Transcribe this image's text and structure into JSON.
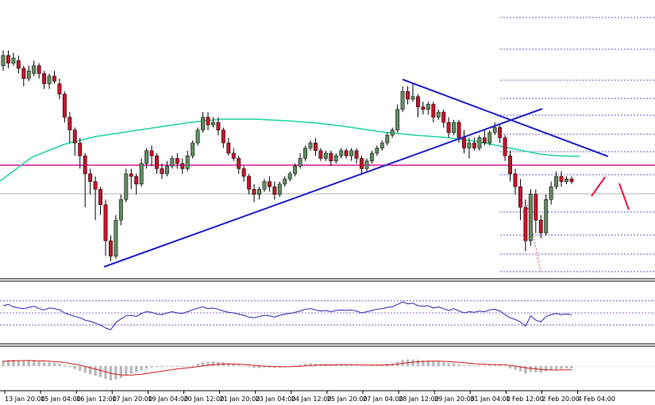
{
  "colors": {
    "bull_body": "#5f8a5f",
    "bear_body": "#c0152a",
    "wick": "#000000",
    "trendline": "#1f1fcc",
    "ma": "#1fd3a3",
    "resistance": "#e0169a",
    "price_line": "#b0b0b0",
    "fib": "#3030c8",
    "rsi_line": "#2727b5",
    "rsi_levels": "#7a3fc4",
    "macd_hist": "#b7b7b7",
    "macd_signal": "#d41d1d",
    "projection": "#e8143c"
  },
  "chart_data": [
    {
      "type": "candlestick",
      "panel": "price",
      "x_ticks": [
        "13 Jan 20:00",
        "15 Jan 04:00",
        "16 Jan 12:00",
        "17 Jan 20:00",
        "19 Jan 04:00",
        "20 Jan 12:00",
        "21 Jan 20:00",
        "23 Jan 04:00",
        "24 Jan 12:00",
        "25 Jan 20:00",
        "27 Jan 04:00",
        "28 Jan 12:00",
        "29 Jan 20:00",
        "31 Jan 04:00",
        "1 Feb 12:00",
        "2 Feb 20:00",
        "4 Feb 04:00"
      ],
      "y_range": [
        0,
        100
      ],
      "grid": false,
      "candles": [
        [
          80,
          84,
          86,
          78
        ],
        [
          84,
          81,
          86,
          79
        ],
        [
          81,
          83,
          85,
          80
        ],
        [
          82,
          79,
          84,
          77
        ],
        [
          79,
          75,
          80,
          72
        ],
        [
          75,
          78,
          80,
          74
        ],
        [
          77,
          80,
          82,
          76
        ],
        [
          80,
          77,
          81,
          75
        ],
        [
          77,
          73,
          78,
          71
        ],
        [
          73,
          76,
          77,
          71
        ],
        [
          76,
          74,
          78,
          73
        ],
        [
          73,
          69,
          75,
          67
        ],
        [
          69,
          60,
          70,
          58
        ],
        [
          60,
          55,
          62,
          50
        ],
        [
          55,
          50,
          56,
          45
        ],
        [
          50,
          45,
          52,
          40
        ],
        [
          45,
          38,
          46,
          25
        ],
        [
          38,
          35,
          40,
          30
        ],
        [
          35,
          32,
          37,
          20
        ],
        [
          32,
          26,
          33,
          22
        ],
        [
          26,
          12,
          28,
          6
        ],
        [
          12,
          6,
          14,
          4
        ],
        [
          6,
          20,
          22,
          5
        ],
        [
          20,
          28,
          30,
          18
        ],
        [
          28,
          38,
          40,
          27
        ],
        [
          38,
          37,
          40,
          32
        ],
        [
          37,
          34,
          38,
          30
        ],
        [
          34,
          42,
          44,
          33
        ],
        [
          42,
          47,
          48,
          40
        ],
        [
          47,
          45,
          49,
          41
        ],
        [
          45,
          40,
          46,
          38
        ],
        [
          40,
          38,
          42,
          36
        ],
        [
          38,
          41,
          43,
          37
        ],
        [
          41,
          44,
          45,
          40
        ],
        [
          44,
          42,
          46,
          40
        ],
        [
          42,
          40,
          44,
          38
        ],
        [
          40,
          45,
          47,
          39
        ],
        [
          45,
          50,
          51,
          44
        ],
        [
          50,
          55,
          56,
          49
        ],
        [
          55,
          60,
          62,
          54
        ],
        [
          60,
          57,
          62,
          55
        ],
        [
          57,
          58,
          60,
          56
        ],
        [
          58,
          55,
          60,
          53
        ],
        [
          55,
          50,
          56,
          48
        ],
        [
          50,
          46,
          52,
          45
        ],
        [
          46,
          44,
          48,
          43
        ],
        [
          44,
          40,
          45,
          38
        ],
        [
          40,
          37,
          41,
          35
        ],
        [
          37,
          32,
          38,
          30
        ],
        [
          32,
          30,
          34,
          27
        ],
        [
          30,
          32,
          33,
          28
        ],
        [
          32,
          35,
          36,
          31
        ],
        [
          35,
          33,
          37,
          31
        ],
        [
          33,
          30,
          35,
          28
        ],
        [
          30,
          34,
          35,
          29
        ],
        [
          34,
          36,
          37,
          33
        ],
        [
          36,
          38,
          39,
          35
        ],
        [
          38,
          41,
          42,
          37
        ],
        [
          41,
          44,
          46,
          40
        ],
        [
          44,
          48,
          49,
          43
        ],
        [
          48,
          50,
          51,
          47
        ],
        [
          50,
          47,
          52,
          45
        ],
        [
          47,
          44,
          48,
          43
        ],
        [
          44,
          46,
          47,
          43
        ],
        [
          46,
          43,
          47,
          41
        ],
        [
          43,
          45,
          46,
          42
        ],
        [
          45,
          47,
          48,
          44
        ],
        [
          47,
          45,
          48,
          44
        ],
        [
          45,
          47,
          48,
          43
        ],
        [
          47,
          44,
          48,
          42
        ],
        [
          44,
          40,
          45,
          38
        ],
        [
          40,
          43,
          44,
          39
        ],
        [
          43,
          46,
          47,
          42
        ],
        [
          46,
          48,
          49,
          45
        ],
        [
          48,
          50,
          51,
          47
        ],
        [
          50,
          53,
          54,
          49
        ],
        [
          53,
          55,
          56,
          52
        ],
        [
          55,
          63,
          65,
          54
        ],
        [
          63,
          70,
          72,
          62
        ],
        [
          70,
          67,
          72,
          65
        ],
        [
          67,
          68,
          73,
          66
        ],
        [
          68,
          64,
          69,
          60
        ],
        [
          64,
          63,
          66,
          61
        ],
        [
          63,
          65,
          66,
          61
        ],
        [
          65,
          60,
          66,
          58
        ],
        [
          60,
          62,
          63,
          59
        ],
        [
          62,
          58,
          63,
          56
        ],
        [
          58,
          54,
          60,
          52
        ],
        [
          54,
          58,
          59,
          53
        ],
        [
          58,
          52,
          59,
          50
        ],
        [
          52,
          48,
          55,
          46
        ],
        [
          48,
          50,
          52,
          44
        ],
        [
          50,
          48,
          52,
          47
        ],
        [
          48,
          52,
          53,
          47
        ],
        [
          52,
          50,
          55,
          49
        ],
        [
          50,
          54,
          55,
          49
        ],
        [
          54,
          56,
          58,
          53
        ],
        [
          56,
          52,
          57,
          50
        ],
        [
          52,
          45,
          53,
          43
        ],
        [
          45,
          38,
          47,
          35
        ],
        [
          38,
          33,
          40,
          30
        ],
        [
          33,
          25,
          36,
          20
        ],
        [
          25,
          12,
          28,
          8
        ],
        [
          12,
          30,
          32,
          10
        ],
        [
          30,
          20,
          32,
          15
        ],
        [
          20,
          15,
          22,
          13
        ],
        [
          15,
          28,
          30,
          14
        ],
        [
          28,
          33,
          35,
          26
        ],
        [
          33,
          37,
          39,
          32
        ],
        [
          37,
          35,
          39,
          33
        ],
        [
          35,
          36,
          37,
          34
        ],
        [
          36,
          35,
          37,
          34
        ]
      ]
    },
    {
      "type": "line",
      "panel": "rsi",
      "y_range": [
        0,
        100
      ],
      "levels": [
        70,
        50,
        30
      ],
      "values": [
        62,
        64,
        60,
        58,
        57,
        59,
        61,
        57,
        55,
        58,
        57,
        55,
        50,
        47,
        44,
        42,
        38,
        36,
        33,
        30,
        25,
        22,
        34,
        40,
        45,
        46,
        44,
        49,
        52,
        51,
        48,
        47,
        50,
        52,
        50,
        49,
        52,
        55,
        58,
        60,
        57,
        58,
        56,
        53,
        51,
        50,
        48,
        46,
        43,
        42,
        44,
        46,
        45,
        43,
        46,
        48,
        49,
        51,
        53,
        56,
        57,
        55,
        53,
        54,
        52,
        54,
        55,
        54,
        55,
        53,
        50,
        52,
        54,
        56,
        57,
        59,
        60,
        64,
        68,
        65,
        66,
        62,
        61,
        62,
        58,
        60,
        57,
        54,
        57,
        53,
        50,
        52,
        51,
        53,
        52,
        55,
        56,
        53,
        47,
        42,
        39,
        35,
        28,
        45,
        38,
        35,
        44,
        47,
        49,
        47,
        48,
        47
      ]
    },
    {
      "type": "bar",
      "panel": "macd",
      "y_range": [
        -40,
        40
      ],
      "values": [
        12,
        13,
        13,
        12,
        11,
        11,
        11,
        10,
        8,
        8,
        7,
        5,
        2,
        -2,
        -6,
        -10,
        -14,
        -17,
        -20,
        -23,
        -27,
        -30,
        -28,
        -25,
        -20,
        -16,
        -13,
        -9,
        -5,
        -3,
        -2,
        -2,
        -1,
        0,
        0,
        -1,
        0,
        2,
        5,
        8,
        9,
        10,
        9,
        8,
        6,
        4,
        2,
        0,
        -2,
        -4,
        -4,
        -3,
        -3,
        -4,
        -3,
        -2,
        -1,
        1,
        3,
        5,
        6,
        5,
        4,
        4,
        3,
        3,
        4,
        3,
        3,
        2,
        0,
        0,
        1,
        2,
        3,
        5,
        6,
        9,
        13,
        14,
        14,
        13,
        12,
        12,
        10,
        10,
        8,
        6,
        6,
        4,
        2,
        2,
        1,
        2,
        2,
        3,
        3,
        2,
        -1,
        -5,
        -8,
        -11,
        -16,
        -12,
        -13,
        -14,
        -11,
        -9,
        -7,
        -6,
        -5,
        -5
      ],
      "signal": [
        10,
        10.5,
        11,
        11.5,
        11.6,
        11.6,
        11.5,
        11.2,
        10.8,
        10.2,
        9.5,
        8.6,
        7.4,
        5.8,
        4,
        1.8,
        -0.8,
        -3.4,
        -6.2,
        -9,
        -12,
        -15,
        -17,
        -18.5,
        -19,
        -18.8,
        -18,
        -17,
        -15.6,
        -14,
        -12.4,
        -10.8,
        -9,
        -7.4,
        -5.9,
        -4.7,
        -3.6,
        -2.5,
        -1.2,
        0.5,
        1.8,
        3,
        3.8,
        4.3,
        4.5,
        4.4,
        4,
        3.3,
        2.4,
        1.4,
        0.6,
        -0.1,
        -0.6,
        -1,
        -1.3,
        -1.4,
        -1.3,
        -0.9,
        -0.4,
        0.4,
        1.2,
        1.8,
        2.2,
        2.5,
        2.6,
        2.7,
        2.9,
        3,
        3,
        2.9,
        2.5,
        2.2,
        2,
        2,
        2.2,
        2.6,
        3.2,
        4.2,
        5.6,
        7,
        8.2,
        9.2,
        9.8,
        10.2,
        10.4,
        10.4,
        10,
        9.4,
        8.8,
        8,
        7,
        6,
        5,
        4.4,
        3.9,
        3.6,
        3.4,
        3.2,
        2.6,
        1.4,
        0,
        -1.6,
        -3.6,
        -4.8,
        -5.9,
        -7,
        -7.8,
        -8.2,
        -8.3,
        -8.2,
        -8,
        -7.8
      ]
    }
  ]
}
